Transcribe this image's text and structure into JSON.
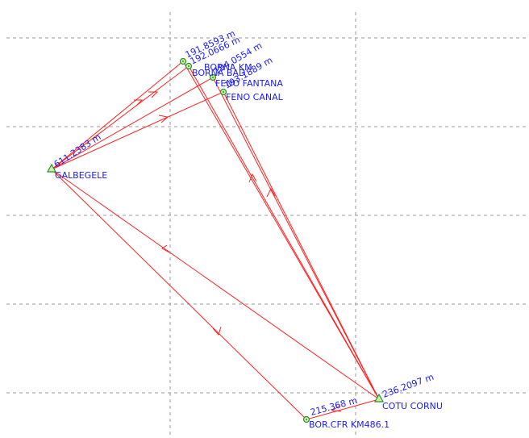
{
  "colors": {
    "edge": "#ff2020",
    "label": "#1a1aff",
    "point": "#2a8f2a",
    "point_fill": "#c9f2a8",
    "grid": "#9a9a9a"
  },
  "stations": [
    {
      "id": "galbegele",
      "label": "GALBEGELE",
      "elev": "611.2383 m",
      "symbol": "triangle"
    },
    {
      "id": "cotu",
      "label": "COTU CORNU",
      "elev": "236.2097 m",
      "symbol": "triangle"
    },
    {
      "id": "p1",
      "label": "",
      "elev": "191.8593 m",
      "symbol": "circle"
    },
    {
      "id": "borna_km",
      "label": "BORNA KM",
      "elev": "192.0666 m",
      "symbol": "circle"
    },
    {
      "id": "borna_bad",
      "label": "BORNA BAD",
      "elev": "",
      "symbol": "circle"
    },
    {
      "id": "feno_fantana",
      "label": "FENO FANTANA",
      "elev": "194.0554 m",
      "symbol": "circle"
    },
    {
      "id": "feno_canal",
      "label": "FENO CANAL",
      "elev": "193.1889 m",
      "symbol": "circle"
    },
    {
      "id": "bor_cfr",
      "label": "BOR.CFR KM486.1",
      "elev": "215.368 m",
      "symbol": "circle"
    }
  ],
  "labels": {
    "galbegele": "GALBEGELE",
    "galbegele_elev": "611.2383 m",
    "cotu": "COTU CORNU",
    "cotu_elev": "236.2097 m",
    "p1_elev": "191.8593 m",
    "borna_km": "BORNA KM",
    "borna_km_elev": "192.0666 m",
    "borna_bad": "BORNA BAD",
    "feno_fantana": "FENO FANTANA",
    "feno_fantana_elev": "194.0554 m",
    "feno_canal": "FENO CANAL",
    "feno_canal_elev": "193.1889 m",
    "bor_cfr": "BOR.CFR KM486.1",
    "bor_cfr_elev": "215.368 m"
  }
}
